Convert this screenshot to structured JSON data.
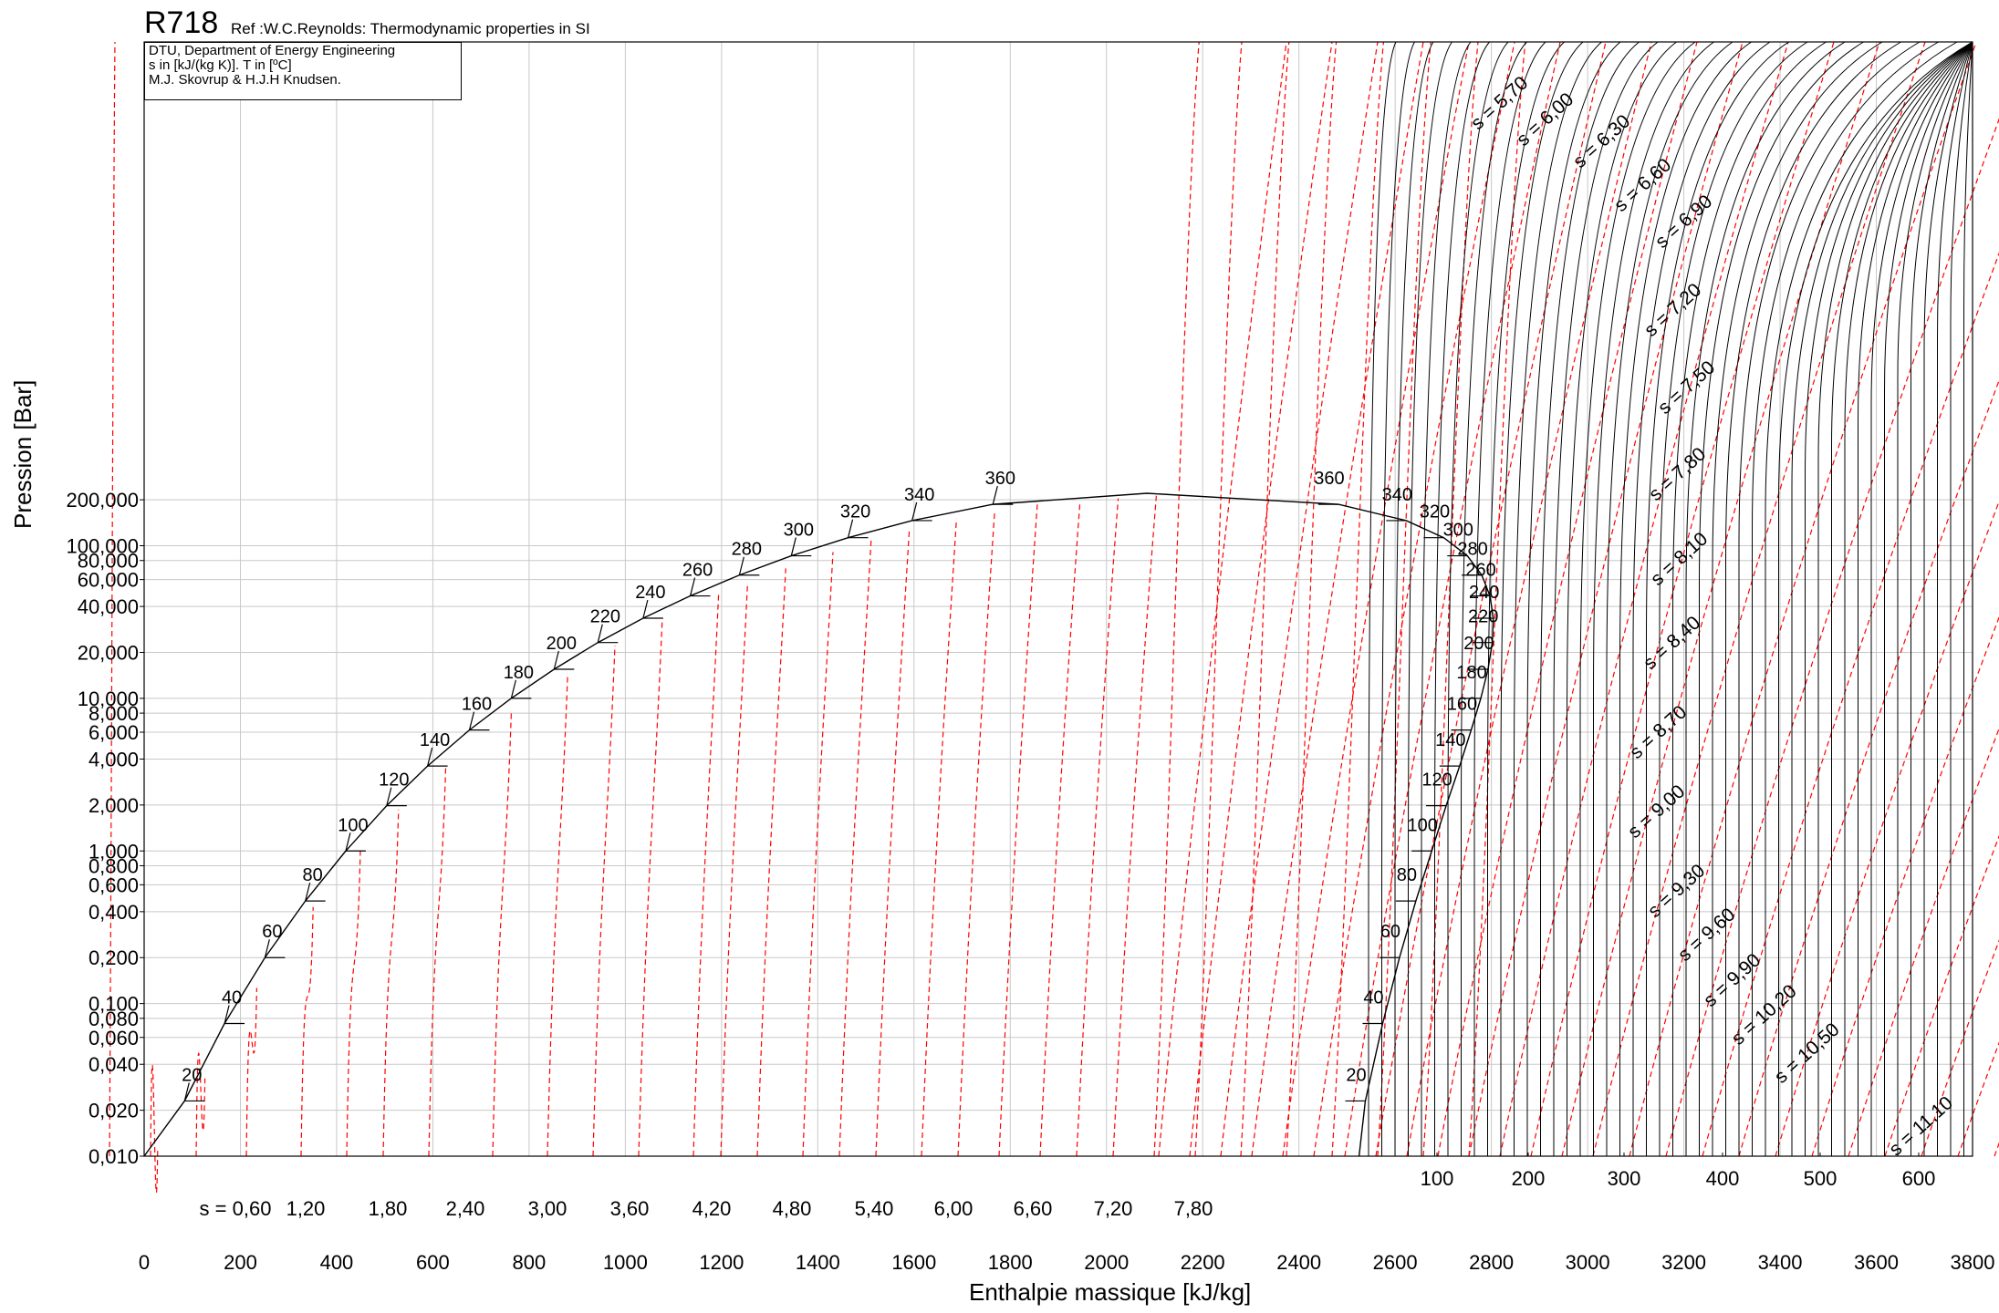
{
  "header": {
    "title": "R718",
    "ref": "Ref :W.C.Reynolds: Thermodynamic properties in SI"
  },
  "info_box": {
    "line1": "DTU, Department of Energy Engineering",
    "line2": "s in [kJ/(kg K)]. T in [ºC]",
    "line3": "M.J. Skovrup & H.J.H Knudsen."
  },
  "colors": {
    "saturation": "#000000",
    "isentrope": "#ff0000",
    "grid": "#c8c8c8",
    "isotherm": "#000000"
  },
  "chart_data": {
    "type": "line",
    "xlabel": "Enthalpie massique [kJ/kg]",
    "ylabel": "Pression [Bar]",
    "xlim": [
      0,
      3800
    ],
    "ylim": [
      0.01,
      200000
    ],
    "y_scale": "log",
    "grid": true,
    "x_ticks": [
      "0",
      "200",
      "400",
      "600",
      "800",
      "1000",
      "1200",
      "1400",
      "1600",
      "1800",
      "2000",
      "2200",
      "2400",
      "2600",
      "2800",
      "3000",
      "3200",
      "3400",
      "3600",
      "3800"
    ],
    "y_ticks": [
      "0,010",
      "0,020",
      "0,040",
      "0,060",
      "0,080",
      "0,100",
      "0,200",
      "0,400",
      "0,600",
      "0,800",
      "1,000",
      "2,000",
      "4,000",
      "6,000",
      "8,000",
      "10,000",
      "20,000",
      "40,000",
      "60,000",
      "80,000",
      "100,000",
      "200,000"
    ],
    "liquid_entropy_scale": [
      "s = 0,60",
      "1,20",
      "1,80",
      "2,40",
      "3,00",
      "3,60",
      "4,20",
      "4,80",
      "5,40",
      "6,00",
      "6,60",
      "7,20",
      "7,80"
    ],
    "superheat_scale": [
      "100",
      "200",
      "300",
      "400",
      "500",
      "600"
    ],
    "saturated_liquid": [
      {
        "T": "20",
        "h": 84,
        "p": 0.023
      },
      {
        "T": "40",
        "h": 167,
        "p": 0.074
      },
      {
        "T": "60",
        "h": 251,
        "p": 0.2
      },
      {
        "T": "80",
        "h": 335,
        "p": 0.47
      },
      {
        "T": "100",
        "h": 419,
        "p": 1.0
      },
      {
        "T": "120",
        "h": 504,
        "p": 1.98
      },
      {
        "T": "140",
        "h": 589,
        "p": 3.6
      },
      {
        "T": "160",
        "h": 676,
        "p": 6.2
      },
      {
        "T": "180",
        "h": 763,
        "p": 10.0
      },
      {
        "T": "200",
        "h": 852,
        "p": 15.5
      },
      {
        "T": "220",
        "h": 943,
        "p": 23.2
      },
      {
        "T": "240",
        "h": 1037,
        "p": 33.5
      },
      {
        "T": "260",
        "h": 1135,
        "p": 46.9
      },
      {
        "T": "280",
        "h": 1237,
        "p": 64.2
      },
      {
        "T": "300",
        "h": 1345,
        "p": 85.9
      },
      {
        "T": "320",
        "h": 1463,
        "p": 112.9
      },
      {
        "T": "340",
        "h": 1596,
        "p": 146.1
      },
      {
        "T": "360",
        "h": 1764,
        "p": 186.7
      }
    ],
    "saturated_vapor": [
      {
        "T": "20",
        "h": 2538,
        "p": 0.023
      },
      {
        "T": "40",
        "h": 2574,
        "p": 0.074
      },
      {
        "T": "60",
        "h": 2609,
        "p": 0.2
      },
      {
        "T": "80",
        "h": 2643,
        "p": 0.47
      },
      {
        "T": "100",
        "h": 2676,
        "p": 1.0
      },
      {
        "T": "120",
        "h": 2706,
        "p": 1.98
      },
      {
        "T": "140",
        "h": 2734,
        "p": 3.6
      },
      {
        "T": "160",
        "h": 2758,
        "p": 6.2
      },
      {
        "T": "180",
        "h": 2778,
        "p": 10.0
      },
      {
        "T": "200",
        "h": 2793,
        "p": 15.5
      },
      {
        "T": "220",
        "h": 2802,
        "p": 23.2
      },
      {
        "T": "240",
        "h": 2804,
        "p": 33.5
      },
      {
        "T": "260",
        "h": 2797,
        "p": 46.9
      },
      {
        "T": "280",
        "h": 2780,
        "p": 64.2
      },
      {
        "T": "300",
        "h": 2750,
        "p": 85.9
      },
      {
        "T": "320",
        "h": 2701,
        "p": 112.9
      },
      {
        "T": "340",
        "h": 2623,
        "p": 146.1
      },
      {
        "T": "360",
        "h": 2482,
        "p": 186.7
      }
    ],
    "isentrope_labels": [
      "s = 5,70",
      "s = 6,00",
      "s = 6,30",
      "s = 6,60",
      "s = 6,90",
      "s = 7,20",
      "s = 7,50",
      "s = 7,80",
      "s = 8,10",
      "s = 8,40",
      "s = 8,70",
      "s = 9,00",
      "s = 9,30",
      "s = 9,60",
      "s = 9,90",
      "s = 10,20",
      "s = 10,50",
      "s = 11,10"
    ]
  }
}
